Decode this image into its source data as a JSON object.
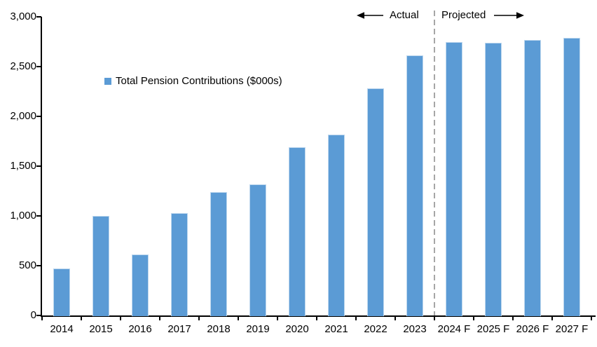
{
  "chart_data": {
    "type": "bar",
    "title": "",
    "legend": "Total Pension Contributions ($000s)",
    "categories": [
      "2014",
      "2015",
      "2016",
      "2017",
      "2018",
      "2019",
      "2020",
      "2021",
      "2022",
      "2023",
      "2024 F",
      "2025 F",
      "2026 F",
      "2027 F"
    ],
    "values": [
      475,
      1000,
      615,
      1030,
      1240,
      1320,
      1690,
      1820,
      2280,
      2610,
      2750,
      2740,
      2765,
      2790
    ],
    "xlabel": "",
    "ylabel": "",
    "ylim": [
      0,
      3000
    ],
    "ytick_step": 500,
    "ytick_labels": [
      "0",
      "500",
      "1,000",
      "1,500",
      "2,000",
      "2,500",
      "3,000"
    ],
    "grid": false,
    "legend_position": "inside-upper-left",
    "annotations": {
      "actual": "Actual",
      "projected": "Projected"
    },
    "divider_index": 10,
    "colors": {
      "bar": "#5B9BD5",
      "bar_border": "#BDD7EE",
      "divider": "#A6A6A6",
      "axis": "#000000",
      "text": "#000000"
    }
  }
}
